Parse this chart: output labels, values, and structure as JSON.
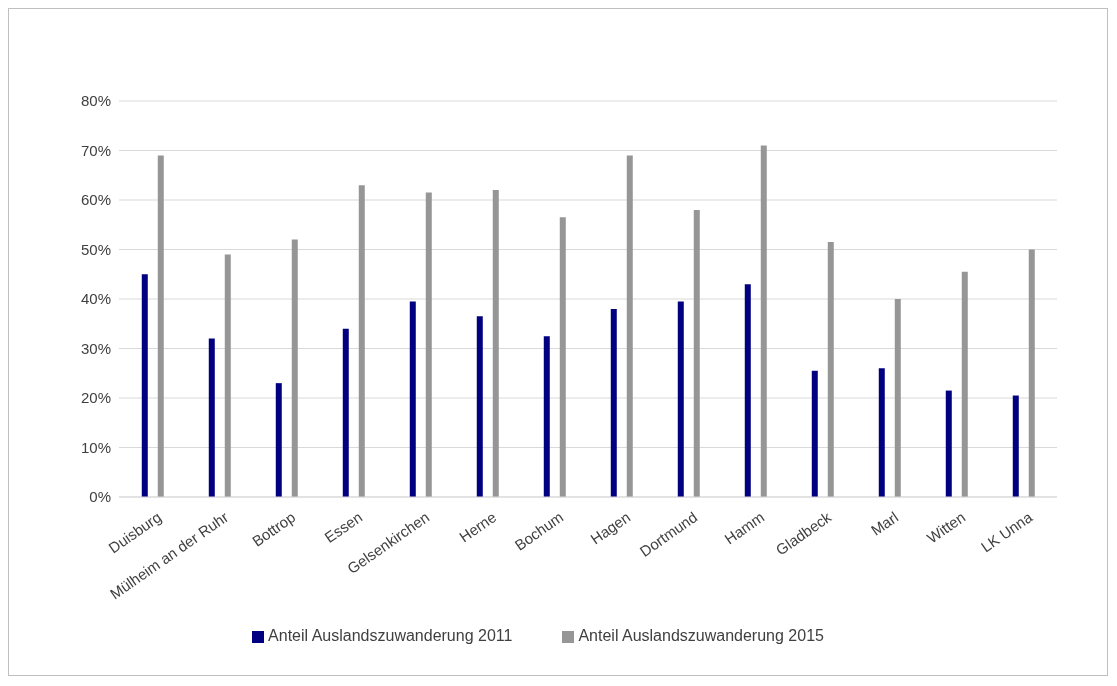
{
  "chart_data": {
    "type": "bar",
    "categories": [
      "Duisburg",
      "Mülheim an der Ruhr",
      "Bottrop",
      "Essen",
      "Gelsenkirchen",
      "Herne",
      "Bochum",
      "Hagen",
      "Dortmund",
      "Hamm",
      "Gladbeck",
      "Marl",
      "Witten",
      "LK Unna"
    ],
    "series": [
      {
        "name": "Anteil Auslandszuwanderung 2011",
        "color": "#000080",
        "values": [
          45,
          32,
          23,
          34,
          39.5,
          36.5,
          32.5,
          38,
          39.5,
          43,
          25.5,
          26,
          21.5,
          20.5
        ]
      },
      {
        "name": "Anteil Auslandszuwanderung 2015",
        "color": "#969696",
        "values": [
          69,
          49,
          52,
          63,
          61.5,
          62,
          56.5,
          69,
          58,
          71,
          51.5,
          40,
          45.5,
          50
        ]
      }
    ],
    "ylim": [
      0,
      80
    ],
    "yticks": [
      {
        "value": 0,
        "label": "0%"
      },
      {
        "value": 10,
        "label": "10%"
      },
      {
        "value": 20,
        "label": "20%"
      },
      {
        "value": 30,
        "label": "30%"
      },
      {
        "value": 40,
        "label": "40%"
      },
      {
        "value": 50,
        "label": "50%"
      },
      {
        "value": 60,
        "label": "60%"
      },
      {
        "value": 70,
        "label": "70%"
      },
      {
        "value": 80,
        "label": "80%"
      }
    ],
    "grid": "y",
    "legend": "bottom"
  }
}
